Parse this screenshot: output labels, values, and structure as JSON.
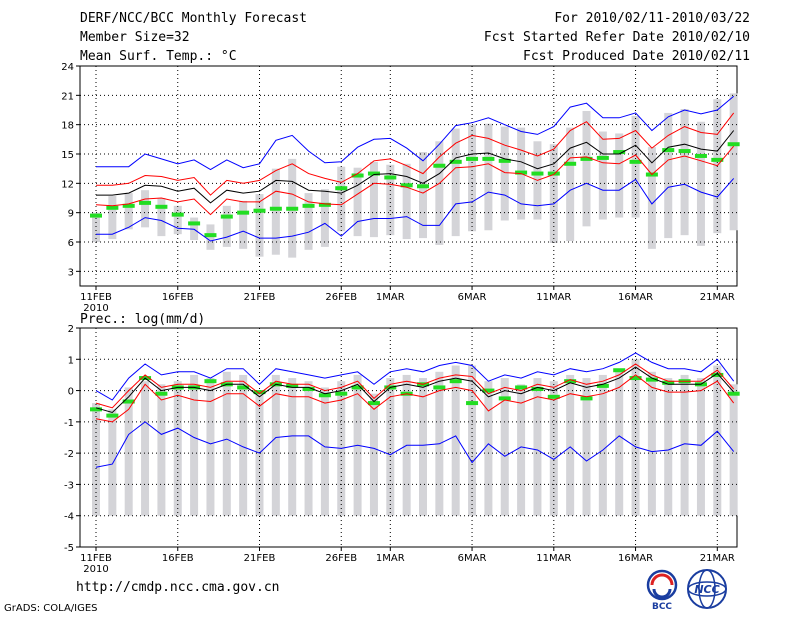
{
  "header": {
    "title": "DERF/NCC/BCC Monthly Forecast",
    "member_size": "Member Size=32",
    "variable": "Mean Surf. Temp.: °C",
    "period": "For 2010/02/11-2010/03/22",
    "started": "Fcst Started Refer Date 2010/02/10",
    "produced": "Fcst Produced Date 2010/02/11"
  },
  "footer": {
    "url": "http://cmdp.ncc.cma.gov.cn",
    "credit": "GrADS: COLA/IGES"
  },
  "logos": {
    "bcc": "BCC",
    "ncc": "NCC"
  },
  "colors": {
    "box": "#d4d4d8",
    "upper_lower": "#0000ff",
    "spread": "#ff0000",
    "mean": "#000000",
    "climo": "#22dd22"
  },
  "chart_data": [
    {
      "type": "box-whisker-line",
      "title": "Mean Surf. Temp.: °C",
      "xlabel": "",
      "ylabel": "",
      "ylim": [
        1.5,
        24
      ],
      "yticks": [
        3,
        6,
        9,
        12,
        15,
        18,
        21,
        24
      ],
      "xticks": [
        {
          "day": 0,
          "label": "11FEB"
        },
        {
          "day": 5,
          "label": "16FEB"
        },
        {
          "day": 10,
          "label": "21FEB"
        },
        {
          "day": 15,
          "label": "26FEB"
        },
        {
          "day": 18,
          "label": "1MAR"
        },
        {
          "day": 23,
          "label": "6MAR"
        },
        {
          "day": 28,
          "label": "11MAR"
        },
        {
          "day": 33,
          "label": "16MAR"
        },
        {
          "day": 38,
          "label": "21MAR"
        }
      ],
      "year_label": "2010",
      "days": [
        0,
        1,
        2,
        3,
        4,
        5,
        6,
        7,
        8,
        9,
        10,
        11,
        12,
        13,
        14,
        15,
        16,
        17,
        18,
        19,
        20,
        21,
        22,
        23,
        24,
        25,
        26,
        27,
        28,
        29,
        30,
        31,
        32,
        33,
        34,
        35,
        36,
        37,
        38,
        39
      ],
      "bar_low": [
        6,
        6.3,
        7.3,
        7.5,
        6.6,
        6.8,
        6.2,
        5.2,
        5.5,
        5.3,
        4.5,
        4.7,
        4.4,
        5.2,
        5.5,
        7.1,
        6.6,
        6.5,
        6.7,
        6.3,
        6.4,
        5.7,
        6.6,
        7.1,
        7.2,
        8.2,
        8.3,
        8.3,
        5.9,
        6.1,
        7.6,
        8.3,
        8.5,
        8.5,
        5.3,
        6.4,
        6.7,
        5.6,
        6.9,
        7.2
      ],
      "bar_high": [
        9,
        10.7,
        11,
        11.3,
        10.5,
        9.7,
        8.5,
        7.8,
        9.7,
        10.2,
        10.9,
        13.5,
        14.5,
        11,
        11.4,
        13.7,
        13.6,
        14.2,
        13.9,
        14,
        15.2,
        16.3,
        17.6,
        18,
        18.1,
        17.8,
        17.7,
        16.3,
        16,
        17.7,
        19.4,
        17.3,
        17.1,
        18.9,
        15.7,
        19.2,
        19.6,
        18.3,
        20.6,
        21.2
      ],
      "climo": [
        8.7,
        9.5,
        9.7,
        10,
        9.6,
        8.8,
        7.9,
        6.7,
        8.6,
        9,
        9.2,
        9.4,
        9.4,
        9.7,
        9.8,
        11.5,
        12.8,
        13,
        12.6,
        11.8,
        11.7,
        13.8,
        14.2,
        14.5,
        14.5,
        14.3,
        13.1,
        13,
        13,
        14,
        14.5,
        14.6,
        15.2,
        14.2,
        12.9,
        15.4,
        15.3,
        14.8,
        14.4,
        16
      ],
      "series": [
        {
          "name": "upper",
          "color": "#0000ff",
          "values": [
            13.7,
            13.7,
            13.7,
            15,
            14.5,
            14,
            14.4,
            13.4,
            14.4,
            13.6,
            14,
            16.4,
            16.9,
            15.3,
            14.1,
            14.2,
            15.7,
            16.5,
            16.6,
            15.6,
            14.3,
            16,
            17.9,
            18.2,
            18.7,
            18,
            17.3,
            17,
            17.8,
            19.8,
            20.2,
            18.7,
            18.7,
            19.2,
            17.4,
            18.8,
            19.5,
            19.1,
            19.5,
            20.9
          ]
        },
        {
          "name": "spread_high",
          "color": "#ff0000",
          "values": [
            11.8,
            11.8,
            12,
            12.8,
            12.7,
            12.3,
            12.6,
            10.8,
            12.3,
            12,
            12.3,
            13.3,
            14,
            13,
            12.5,
            12.1,
            13,
            14.3,
            14.5,
            13.8,
            13,
            14.7,
            16.1,
            16.9,
            16.6,
            15.9,
            15.4,
            14.8,
            15.5,
            17.4,
            18.3,
            16.5,
            16.6,
            17.4,
            15.6,
            16.9,
            17.8,
            17.2,
            17,
            19.2
          ]
        },
        {
          "name": "mean",
          "color": "#000000",
          "values": [
            10.8,
            10.8,
            11,
            11.8,
            11.7,
            11.2,
            11.5,
            10,
            11.3,
            11,
            11.2,
            12.3,
            12.2,
            11.3,
            11.2,
            11,
            11.8,
            12.9,
            13,
            12.7,
            12,
            13,
            14.6,
            15,
            15.1,
            14.5,
            14.2,
            13.5,
            14,
            15.6,
            16.2,
            15,
            15,
            15.9,
            14.1,
            15.7,
            16,
            15.5,
            15.3,
            17.4
          ]
        },
        {
          "name": "spread_low",
          "color": "#ff0000",
          "values": [
            9.8,
            9.7,
            9.9,
            10.4,
            10.5,
            10.1,
            10.4,
            8.8,
            10.4,
            10.1,
            10.1,
            11.2,
            10.9,
            10.1,
            9.9,
            9.8,
            10.9,
            12,
            11.9,
            11.6,
            11,
            12,
            13.6,
            13.7,
            14,
            13.1,
            13,
            12.3,
            12.9,
            14.6,
            14.7,
            14.1,
            14,
            14.9,
            12.9,
            14.4,
            14.8,
            14.3,
            13.8,
            15.8
          ]
        },
        {
          "name": "lower",
          "color": "#0000ff",
          "values": [
            6.8,
            6.8,
            7.5,
            8.5,
            8.2,
            7.4,
            7.3,
            6.1,
            6.5,
            7.1,
            6.4,
            6.4,
            6.6,
            7,
            7.9,
            6.6,
            8.1,
            8.4,
            8.4,
            8.6,
            7.7,
            7.7,
            9.9,
            10.1,
            11.1,
            10.8,
            9.9,
            9.7,
            9.9,
            11.3,
            12,
            11.3,
            11.3,
            12.4,
            9.9,
            11.6,
            11.9,
            11.1,
            10.6,
            12.5
          ]
        }
      ]
    },
    {
      "type": "box-whisker-line",
      "title": "Prec.: log(mm/d)",
      "xlabel": "",
      "ylabel": "",
      "ylim": [
        -5,
        2
      ],
      "yticks": [
        -5,
        -4,
        -3,
        -2,
        -1,
        0,
        1,
        2
      ],
      "xticks": [
        {
          "day": 0,
          "label": "11FEB"
        },
        {
          "day": 5,
          "label": "16FEB"
        },
        {
          "day": 10,
          "label": "21FEB"
        },
        {
          "day": 15,
          "label": "26FEB"
        },
        {
          "day": 18,
          "label": "1MAR"
        },
        {
          "day": 23,
          "label": "6MAR"
        },
        {
          "day": 28,
          "label": "11MAR"
        },
        {
          "day": 33,
          "label": "16MAR"
        },
        {
          "day": 38,
          "label": "21MAR"
        }
      ],
      "year_label": "2010",
      "days": [
        0,
        1,
        2,
        3,
        4,
        5,
        6,
        7,
        8,
        9,
        10,
        11,
        12,
        13,
        14,
        15,
        16,
        17,
        18,
        19,
        20,
        21,
        22,
        23,
        24,
        25,
        26,
        27,
        28,
        29,
        30,
        31,
        32,
        33,
        34,
        35,
        36,
        37,
        38,
        39
      ],
      "bar_low": [
        -4,
        -4,
        -4,
        -4,
        -4,
        -4,
        -4,
        -4,
        -4,
        -4,
        -4,
        -4,
        -4,
        -4,
        -4,
        -4,
        -4,
        -4,
        -4,
        -4,
        -4,
        -4,
        -4,
        -4,
        -4,
        -4,
        -4,
        -4,
        -4,
        -4,
        -4,
        -4,
        -4,
        -4,
        -4,
        -4,
        -4,
        -4,
        -4,
        -4
      ],
      "bar_high": [
        -0.4,
        -0.6,
        0.1,
        0.3,
        0.2,
        0.3,
        0.5,
        0.4,
        0.6,
        0.5,
        0,
        0.5,
        0.4,
        0.3,
        0.1,
        0.3,
        0.5,
        -0.1,
        0.4,
        0.5,
        0.4,
        0.6,
        0.8,
        0.8,
        0.3,
        0.4,
        0.2,
        0.4,
        0.3,
        0.5,
        0.4,
        0.5,
        0.7,
        1,
        0.6,
        0.4,
        0.5,
        0.4,
        0.8,
        0.2
      ],
      "climo": [
        -0.6,
        -0.8,
        -0.35,
        0.4,
        -0.1,
        0.1,
        0.1,
        0.3,
        0.2,
        0.1,
        -0.05,
        0.2,
        0.15,
        0.05,
        -0.15,
        -0.1,
        0.1,
        -0.4,
        0.1,
        -0.1,
        0.2,
        0.1,
        0.3,
        -0.4,
        0,
        -0.25,
        0.1,
        0.05,
        -0.2,
        0.3,
        -0.25,
        0.15,
        0.65,
        0.4,
        0.35,
        0.25,
        0.3,
        0.2,
        0.5,
        -0.1
      ],
      "series": [
        {
          "name": "upper",
          "color": "#0000ff",
          "values": [
            0,
            -0.3,
            0.4,
            0.85,
            0.5,
            0.6,
            0.6,
            0.4,
            0.7,
            0.7,
            0.2,
            0.7,
            0.6,
            0.5,
            0.4,
            0.5,
            0.6,
            0.2,
            0.6,
            0.7,
            0.6,
            0.8,
            0.9,
            0.8,
            0.3,
            0.5,
            0.4,
            0.6,
            0.5,
            0.7,
            0.6,
            0.7,
            0.9,
            1.2,
            0.9,
            0.7,
            0.7,
            0.6,
            1,
            0.3
          ]
        },
        {
          "name": "spread_high",
          "color": "#ff0000",
          "values": [
            -0.4,
            -0.55,
            0,
            0.5,
            0.1,
            0.2,
            0.2,
            0.1,
            0.3,
            0.3,
            -0.1,
            0.3,
            0.2,
            0.2,
            0,
            0.1,
            0.3,
            -0.25,
            0.2,
            0.3,
            0.2,
            0.4,
            0.5,
            0.45,
            -0.1,
            0.1,
            0,
            0.2,
            0.1,
            0.35,
            0.2,
            0.3,
            0.5,
            0.85,
            0.5,
            0.3,
            0.3,
            0.3,
            0.65,
            0.05
          ]
        },
        {
          "name": "mean",
          "color": "#000000",
          "values": [
            -0.55,
            -0.7,
            -0.2,
            0.4,
            0,
            0.1,
            0.1,
            0,
            0.2,
            0.2,
            -0.2,
            0.2,
            0.1,
            0.1,
            -0.1,
            0,
            0.2,
            -0.35,
            0.1,
            0.2,
            0.1,
            0.3,
            0.4,
            0.3,
            -0.2,
            0,
            -0.1,
            0.1,
            0,
            0.25,
            0.1,
            0.2,
            0.4,
            0.75,
            0.4,
            0.2,
            0.2,
            0.2,
            0.55,
            -0.05
          ]
        },
        {
          "name": "spread_low",
          "color": "#ff0000",
          "values": [
            -0.9,
            -1,
            -0.6,
            0.2,
            -0.3,
            -0.15,
            -0.3,
            -0.35,
            -0.1,
            -0.1,
            -0.5,
            -0.1,
            -0.2,
            -0.2,
            -0.4,
            -0.3,
            -0.1,
            -0.6,
            -0.2,
            -0.1,
            -0.2,
            0,
            0.1,
            0,
            -0.65,
            -0.3,
            -0.4,
            -0.2,
            -0.3,
            -0.1,
            -0.2,
            -0.1,
            0.1,
            0.5,
            0.1,
            -0.05,
            -0.05,
            0,
            0.3,
            -0.4
          ]
        },
        {
          "name": "lower",
          "color": "#0000ff",
          "values": [
            -2.45,
            -2.35,
            -1.4,
            -1,
            -1.4,
            -1.2,
            -1.5,
            -1.7,
            -1.55,
            -1.8,
            -2,
            -1.5,
            -1.45,
            -1.45,
            -1.8,
            -1.85,
            -1.75,
            -1.85,
            -2.05,
            -1.75,
            -1.75,
            -1.7,
            -1.45,
            -2.3,
            -1.7,
            -2.1,
            -1.8,
            -1.9,
            -2.2,
            -1.8,
            -2.25,
            -1.9,
            -1.45,
            -1.8,
            -1.95,
            -1.9,
            -1.7,
            -1.75,
            -1.3,
            -1.95
          ]
        }
      ]
    }
  ]
}
